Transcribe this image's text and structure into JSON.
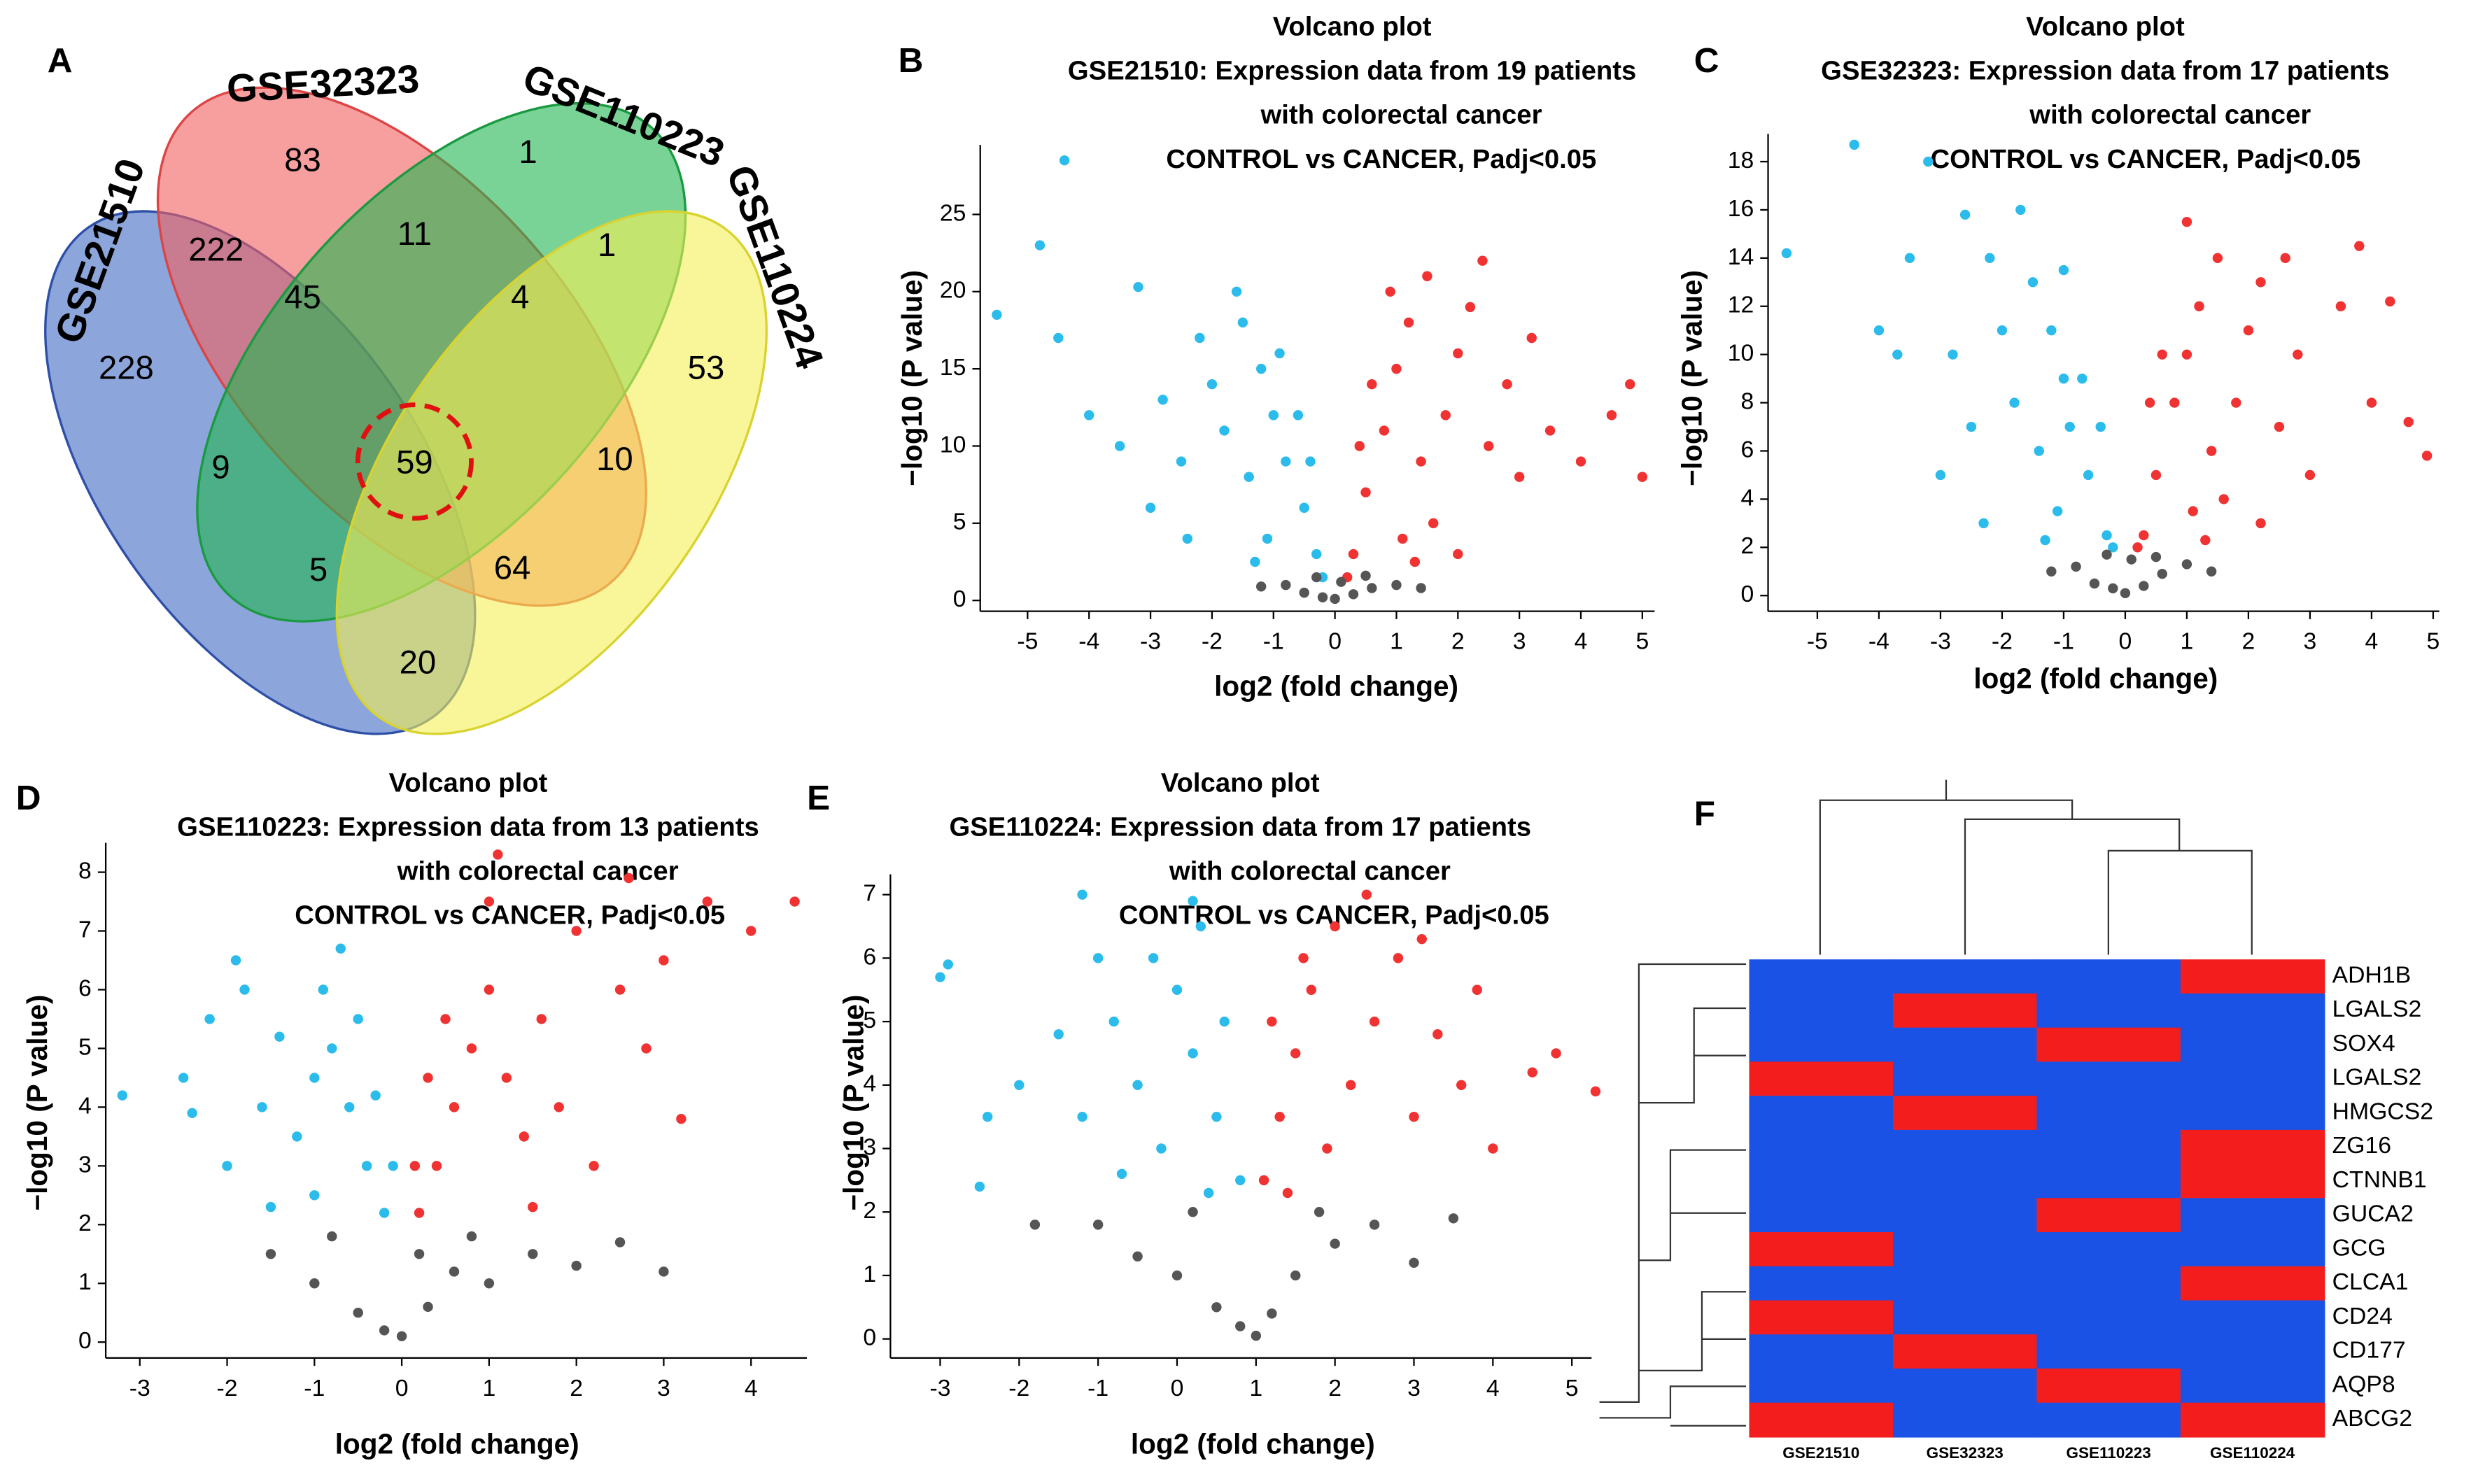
{
  "chart_data": [
    {
      "type": "venn",
      "panel": "A",
      "sets": [
        "GSE21510",
        "GSE32323",
        "GSE110223",
        "GSE110224"
      ],
      "values": [
        83,
        1,
        222,
        11,
        1,
        228,
        45,
        4,
        53,
        9,
        59,
        10,
        5,
        64,
        20
      ]
    },
    {
      "type": "scatter",
      "panel": "B",
      "title": "Volcano plot",
      "subtitle": [
        "GSE21510: Expression data from 19 patients",
        "with colorectal cancer",
        "CONTROL vs CANCER,  Padj<0.05"
      ],
      "x_label": "log2 (fold change)",
      "y_label": "−log10 (P value)",
      "xlim": [
        -5.77,
        5.2
      ],
      "ylim": [
        -0.7,
        29.5
      ],
      "xticks": [
        -5,
        -4,
        -3,
        -2,
        -1,
        0,
        1,
        2,
        3,
        4,
        5
      ],
      "yticks": [
        0,
        5,
        10,
        15,
        20,
        25
      ],
      "series": [
        {
          "color": "#2bbcec",
          "x": [
            -0.3,
            -0.5,
            -0.8,
            -1,
            -1.2,
            -1.5,
            -0.6,
            -1.4,
            -1.8,
            -2,
            -2.2,
            -2.5,
            -3,
            -1.1,
            -0.4,
            -0.9,
            -1.6,
            -2.8,
            -3.5,
            -4,
            -4.5,
            -5.5,
            -4.4,
            -4.8,
            -3.2,
            -0.2,
            -1.3,
            -2.4
          ],
          "values": [
            3,
            6,
            9,
            12,
            15,
            18,
            12,
            8,
            11,
            14,
            17,
            9,
            6,
            4,
            9,
            16,
            20,
            13,
            10,
            12,
            17,
            18.5,
            28.5,
            23,
            20.3,
            1.5,
            2.5,
            4
          ]
        },
        {
          "color": "#f03232",
          "x": [
            0.3,
            0.5,
            0.8,
            1,
            1.2,
            1.5,
            0.6,
            1.4,
            1.8,
            2,
            2.2,
            2.5,
            3,
            1.1,
            0.4,
            0.9,
            1.6,
            2.8,
            3.5,
            4,
            4.5,
            5,
            3.2,
            2.4,
            0.2,
            1.3,
            2,
            4.8
          ],
          "values": [
            3,
            7,
            11,
            15,
            18,
            21,
            14,
            9,
            12,
            16,
            19,
            10,
            8,
            4,
            10,
            20,
            5,
            14,
            11,
            9,
            12,
            8,
            17,
            22,
            1.5,
            2.5,
            3,
            14
          ]
        },
        {
          "color": "#555555",
          "x": [
            -0.5,
            -0.2,
            0,
            0.3,
            0.6,
            -0.8,
            1,
            -1.2,
            1.4,
            0.1,
            -0.3,
            0.5
          ],
          "values": [
            0.5,
            0.2,
            0.1,
            0.4,
            0.8,
            1,
            1,
            0.9,
            0.8,
            1.2,
            1.5,
            1.6
          ]
        }
      ]
    },
    {
      "type": "scatter",
      "panel": "C",
      "title": "Volcano plot",
      "subtitle": [
        "GSE32323: Expression data from 17 patients",
        "with colorectal cancer",
        "CONTROL vs CANCER,  Padj<0.05"
      ],
      "x_label": "log2 (fold change)",
      "y_label": "−log10 (P value)",
      "xlim": [
        -5.8,
        5.1
      ],
      "ylim": [
        -0.65,
        19.15
      ],
      "xticks": [
        -5,
        -4,
        -3,
        -2,
        -1,
        0,
        1,
        2,
        3,
        4,
        5
      ],
      "yticks": [
        0,
        2,
        4,
        6,
        8,
        10,
        12,
        14,
        16,
        18
      ],
      "series": [
        {
          "color": "#2bbcec",
          "x": [
            -0.3,
            -0.6,
            -0.9,
            -1,
            -1.2,
            -1.5,
            -0.7,
            -1.4,
            -1.8,
            -2,
            -2.2,
            -2.5,
            -3,
            -1.1,
            -0.4,
            -1,
            -1.7,
            -2.8,
            -3.5,
            -3.7,
            -4.4,
            -5.5,
            -3.2,
            -4,
            -2.6,
            -0.2,
            -1.3,
            -2.3
          ],
          "values": [
            2.5,
            5,
            7,
            9,
            11,
            13,
            9,
            6,
            8,
            11,
            14,
            7,
            5,
            3.5,
            7,
            13.5,
            16,
            10,
            14,
            10,
            18.7,
            14.2,
            18,
            11,
            15.8,
            2,
            2.3,
            3
          ]
        },
        {
          "color": "#f03232",
          "x": [
            0.3,
            0.5,
            0.8,
            1,
            1.2,
            1.5,
            0.6,
            1.4,
            1.8,
            2,
            2.2,
            2.5,
            3,
            1.1,
            0.4,
            1,
            1.6,
            2.8,
            3.5,
            4,
            4.3,
            4.9,
            3.8,
            2.6,
            0.2,
            1.3,
            2.2,
            4.6
          ],
          "values": [
            2.5,
            5,
            8,
            10,
            12,
            14,
            10,
            6,
            8,
            11,
            13,
            7,
            5,
            3.5,
            8,
            15.5,
            4,
            10,
            12,
            8,
            12.2,
            5.8,
            14.5,
            14,
            2,
            2.3,
            3,
            7.2
          ]
        },
        {
          "color": "#555555",
          "x": [
            -0.5,
            -0.2,
            0,
            0.3,
            0.6,
            -0.8,
            1,
            -1.2,
            1.4,
            0.1,
            -0.3,
            0.5
          ],
          "values": [
            0.5,
            0.3,
            0.1,
            0.4,
            0.9,
            1.2,
            1.3,
            1,
            1,
            1.5,
            1.7,
            1.6
          ]
        }
      ]
    },
    {
      "type": "scatter",
      "panel": "D",
      "title": "Volcano plot",
      "subtitle": [
        "GSE110223: Expression data from 13 patients",
        "with colorectal cancer",
        "CONTROL vs CANCER,  Padj<0.05"
      ],
      "x_label": "log2 (fold change)",
      "y_label": "−log10 (P value)",
      "xlim": [
        -3.39,
        4.64
      ],
      "ylim": [
        -0.27,
        8.5
      ],
      "xticks": [
        -3,
        -2,
        -1,
        0,
        1,
        2,
        3,
        4
      ],
      "yticks": [
        0,
        1,
        2,
        3,
        4,
        5,
        6,
        7,
        8
      ],
      "series": [
        {
          "color": "#2bbcec",
          "x": [
            -0.2,
            -0.4,
            -0.6,
            -0.8,
            -0.9,
            -1,
            -0.5,
            -1.2,
            -1.4,
            -1.6,
            -1.8,
            -2,
            -2.2,
            -0.7,
            -0.3,
            -1,
            -1.5,
            -2.5,
            -3.2,
            -2.4,
            -1.9,
            -0.1
          ],
          "values": [
            2.2,
            3,
            4,
            5,
            6,
            4.5,
            5.5,
            3.5,
            5.2,
            4,
            6,
            3,
            5.5,
            6.7,
            4.2,
            2.5,
            2.3,
            4.5,
            4.2,
            3.9,
            6.5,
            3
          ]
        },
        {
          "color": "#f03232",
          "x": [
            0.2,
            0.4,
            0.6,
            0.8,
            1,
            1.2,
            0.5,
            1.4,
            1.6,
            1.8,
            2,
            2.2,
            2.5,
            1,
            0.3,
            1.1,
            1.5,
            2.8,
            3,
            3.5,
            4,
            4.5,
            3.2,
            2.6,
            0.15
          ],
          "values": [
            2.2,
            3,
            4,
            5,
            6,
            4.5,
            5.5,
            3.5,
            5.5,
            4,
            7,
            3,
            6,
            7.5,
            4.5,
            8.3,
            2.3,
            5,
            6.5,
            7.5,
            7,
            7.5,
            3.8,
            7.9,
            3
          ]
        },
        {
          "color": "#555555",
          "x": [
            -1,
            -0.5,
            -0.2,
            0,
            0.3,
            0.6,
            1,
            1.5,
            2,
            2.5,
            3,
            -0.8,
            0.8,
            -1.5,
            0.2
          ],
          "values": [
            1,
            0.5,
            0.2,
            0.1,
            0.6,
            1.2,
            1,
            1.5,
            1.3,
            1.7,
            1.2,
            1.8,
            1.8,
            1.5,
            1.5
          ]
        }
      ]
    },
    {
      "type": "scatter",
      "panel": "E",
      "title": "Volcano plot",
      "subtitle": [
        "GSE110224: Expression data from 17 patients",
        "with colorectal cancer",
        "CONTROL vs CANCER,  Padj<0.05"
      ],
      "x_label": "log2 (fold change)",
      "y_label": "−log10 (P value)",
      "xlim": [
        -3.63,
        5.25
      ],
      "ylim": [
        -0.3,
        7.32
      ],
      "xticks": [
        -3,
        -2,
        -1,
        0,
        1,
        2,
        3,
        4,
        5
      ],
      "yticks": [
        0,
        1,
        2,
        3,
        4,
        5,
        6,
        7
      ],
      "series": [
        {
          "color": "#2bbcec",
          "x": [
            0.8,
            0.5,
            0.2,
            0,
            -0.2,
            0.3,
            -0.5,
            -0.8,
            -1,
            -1.2,
            -1.5,
            -0.3,
            0.6,
            -2,
            -2.4,
            -2.9,
            -3,
            -2.5,
            -1.2,
            0.2,
            -0.7,
            0.4
          ],
          "values": [
            2.5,
            3.5,
            4.5,
            5.5,
            3,
            6.5,
            4,
            5,
            6,
            3.5,
            4.8,
            6,
            5,
            4,
            3.5,
            5.9,
            5.7,
            2.4,
            7,
            6.9,
            2.6,
            2.3
          ]
        },
        {
          "color": "#f03232",
          "x": [
            1.1,
            1.3,
            1.5,
            1.7,
            1.9,
            1.6,
            2.2,
            2.5,
            2.8,
            3,
            3.3,
            2,
            1.2,
            3.6,
            4,
            5.3,
            4.8,
            2.4,
            3.1,
            1.4,
            4.5,
            3.8
          ],
          "values": [
            2.5,
            3.5,
            4.5,
            5.5,
            3,
            6,
            4,
            5,
            6,
            3.5,
            4.8,
            6.5,
            5,
            4,
            3,
            3.9,
            4.5,
            7,
            6.3,
            2.3,
            4.2,
            5.5
          ]
        },
        {
          "color": "#555555",
          "x": [
            -1,
            0,
            0.5,
            0.8,
            1,
            1.2,
            1.5,
            2,
            2.5,
            3,
            -0.5,
            0.2,
            1.8,
            3.5,
            -1.8
          ],
          "values": [
            1.8,
            1,
            0.5,
            0.2,
            0.05,
            0.4,
            1,
            1.5,
            1.8,
            1.2,
            1.3,
            2,
            2,
            1.9,
            1.8
          ]
        }
      ]
    },
    {
      "type": "heatmap",
      "panel": "F",
      "rows": [
        "ADH1B",
        "LGALS2",
        "SOX4",
        "LGALS2",
        "HMGCS2",
        "ZG16",
        "CTNNB1",
        "GUCA2",
        "GCG",
        "CLCA1",
        "CD24",
        "CD177",
        "AQP8",
        "ABCG2"
      ],
      "columns": [
        "GSE21510",
        "GSE32323",
        "GSE110223",
        "GSE110224"
      ],
      "values": [
        [
          0,
          0,
          0,
          1
        ],
        [
          0,
          1,
          0,
          0
        ],
        [
          0,
          0,
          1,
          0
        ],
        [
          1,
          0,
          0,
          0
        ],
        [
          0,
          1,
          0,
          0
        ],
        [
          0,
          0,
          0,
          1
        ],
        [
          0,
          0,
          0,
          1
        ],
        [
          0,
          0,
          1,
          0
        ],
        [
          1,
          0,
          0,
          0
        ],
        [
          0,
          0,
          0,
          1
        ],
        [
          1,
          0,
          0,
          0
        ],
        [
          0,
          1,
          0,
          0
        ],
        [
          0,
          0,
          1,
          0
        ],
        [
          1,
          0,
          0,
          1
        ]
      ],
      "colors": [
        "#1a52e6",
        "#f41d1d"
      ]
    }
  ]
}
